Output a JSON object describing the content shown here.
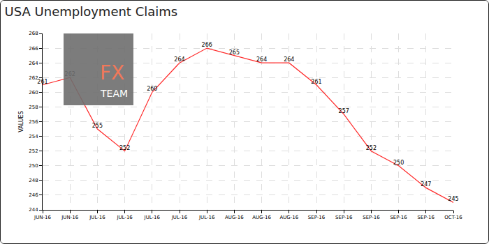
{
  "chart_data": {
    "type": "line",
    "title": "USA Unemployment Claims",
    "y_label": "VALUES",
    "categories": [
      "JUN-16",
      "JUN-16",
      "JUL-16",
      "JUL-16",
      "JUL-16",
      "JUL-16",
      "JUL-16",
      "AUG-16",
      "AUG-16",
      "AUG-16",
      "SEP-16",
      "SEP-16",
      "SEP-16",
      "SEP-16",
      "SEP-16",
      "OCT-16"
    ],
    "values": [
      261,
      262,
      255,
      252,
      260,
      264,
      266,
      265,
      264,
      264,
      261,
      257,
      252,
      250,
      247,
      245
    ],
    "color": "#ff2a2a",
    "ylim": [
      244,
      268
    ],
    "yticks": [
      244,
      246,
      248,
      250,
      252,
      254,
      256,
      258,
      260,
      262,
      264,
      266,
      268
    ],
    "grid": true,
    "data_labels": true,
    "annotations": [
      "FX",
      "TEAM"
    ]
  }
}
